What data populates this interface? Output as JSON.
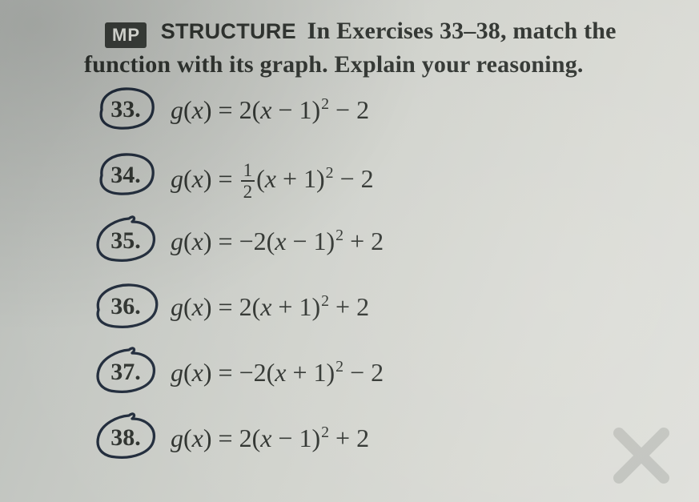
{
  "header": {
    "badge": "MP",
    "keyword": "STRUCTURE",
    "line1_rest": "In Exercises 33–38, match the",
    "line2": "function with its graph. Explain your reasoning."
  },
  "items": [
    {
      "num": "33.",
      "circle": "ellipse",
      "fn": "g",
      "var": "x",
      "a_num": "2",
      "a_den": null,
      "a_sign": "",
      "h_sign": "−",
      "h": "1",
      "k_sign": "−",
      "k": "2"
    },
    {
      "num": "34.",
      "circle": "ellipse",
      "fn": "g",
      "var": "x",
      "a_num": "1",
      "a_den": "2",
      "a_sign": "",
      "h_sign": "+",
      "h": "1",
      "k_sign": "−",
      "k": "2"
    },
    {
      "num": "35.",
      "circle": "blob-tail",
      "fn": "g",
      "var": "x",
      "a_num": "2",
      "a_den": null,
      "a_sign": "−",
      "h_sign": "−",
      "h": "1",
      "k_sign": "+",
      "k": "2"
    },
    {
      "num": "36.",
      "circle": "blob-wide",
      "fn": "g",
      "var": "x",
      "a_num": "2",
      "a_den": null,
      "a_sign": "",
      "h_sign": "+",
      "h": "1",
      "k_sign": "+",
      "k": "2"
    },
    {
      "num": "37.",
      "circle": "blob-tail",
      "fn": "g",
      "var": "x",
      "a_num": "2",
      "a_den": null,
      "a_sign": "−",
      "h_sign": "+",
      "h": "1",
      "k_sign": "−",
      "k": "2"
    },
    {
      "num": "38.",
      "circle": "blob-tail",
      "fn": "g",
      "var": "x",
      "a_num": "2",
      "a_den": null,
      "a_sign": "",
      "h_sign": "−",
      "h": "1",
      "k_sign": "+",
      "k": "2"
    }
  ],
  "style": {
    "pen_color": "#1f2a3a",
    "pen_width": 3.3,
    "text_color": "#2b2f2b"
  }
}
